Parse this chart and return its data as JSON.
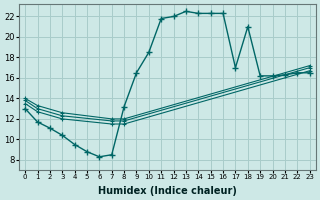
{
  "xlabel": "Humidex (Indice chaleur)",
  "background_color": "#cde8e6",
  "grid_color": "#a8ccca",
  "line_color": "#006666",
  "xlim": [
    -0.5,
    23.5
  ],
  "ylim": [
    7.0,
    23.2
  ],
  "xticks": [
    0,
    1,
    2,
    3,
    4,
    5,
    6,
    7,
    8,
    9,
    10,
    11,
    12,
    13,
    14,
    15,
    16,
    17,
    18,
    19,
    20,
    21,
    22,
    23
  ],
  "yticks": [
    8,
    10,
    12,
    14,
    16,
    18,
    20,
    22
  ],
  "main_x": [
    0,
    1,
    2,
    3,
    4,
    5,
    6,
    7,
    8,
    9,
    10,
    11,
    12,
    13,
    14,
    15,
    16,
    17,
    18,
    19,
    20,
    21,
    22,
    23
  ],
  "main_y": [
    13.0,
    11.7,
    11.1,
    10.4,
    9.5,
    8.8,
    8.3,
    8.5,
    13.2,
    16.5,
    18.5,
    21.8,
    22.0,
    22.5,
    22.3,
    22.3,
    22.3,
    17.0,
    21.0,
    16.2,
    16.2,
    16.3,
    16.5,
    16.5
  ],
  "ref1_x": [
    0,
    1,
    3,
    7,
    8,
    23
  ],
  "ref1_y": [
    13.5,
    12.7,
    12.0,
    11.5,
    11.5,
    16.7
  ],
  "ref2_x": [
    0,
    1,
    3,
    7,
    8,
    23
  ],
  "ref2_y": [
    13.8,
    13.0,
    12.3,
    11.8,
    11.8,
    17.0
  ],
  "ref3_x": [
    0,
    1,
    3,
    7,
    8,
    23
  ],
  "ref3_y": [
    14.0,
    13.3,
    12.6,
    12.0,
    12.0,
    17.2
  ]
}
